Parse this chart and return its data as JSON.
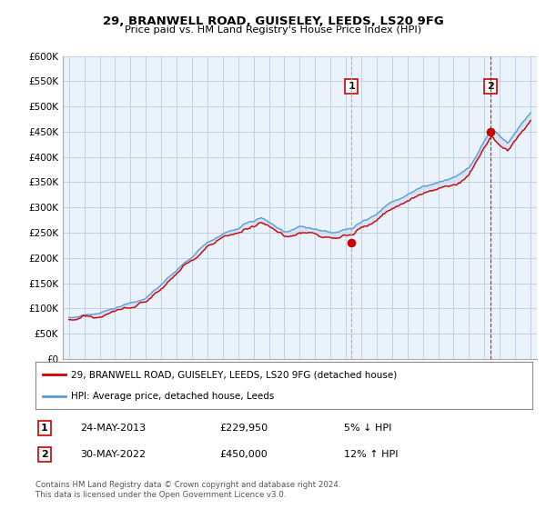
{
  "title": "29, BRANWELL ROAD, GUISELEY, LEEDS, LS20 9FG",
  "subtitle": "Price paid vs. HM Land Registry's House Price Index (HPI)",
  "ylabel_ticks": [
    "£0",
    "£50K",
    "£100K",
    "£150K",
    "£200K",
    "£250K",
    "£300K",
    "£350K",
    "£400K",
    "£450K",
    "£500K",
    "£550K",
    "£600K"
  ],
  "ytick_values": [
    0,
    50000,
    100000,
    150000,
    200000,
    250000,
    300000,
    350000,
    400000,
    450000,
    500000,
    550000,
    600000
  ],
  "x_start_year": 1995,
  "x_end_year": 2025,
  "sale1_date": "24-MAY-2013",
  "sale1_price": 229950,
  "sale1_year": 2013.37,
  "sale2_date": "30-MAY-2022",
  "sale2_price": 450000,
  "sale2_year": 2022.41,
  "property_label": "29, BRANWELL ROAD, GUISELEY, LEEDS, LS20 9FG (detached house)",
  "hpi_label": "HPI: Average price, detached house, Leeds",
  "footer": "Contains HM Land Registry data © Crown copyright and database right 2024.\nThis data is licensed under the Open Government Licence v3.0.",
  "hpi_color": "#5b9bd5",
  "fill_color": "#c9ddf0",
  "property_color": "#cc0000",
  "sale1_vline_color": "#aaaaaa",
  "sale2_vline_color": "#cc0000",
  "background_color": "#ffffff",
  "chart_bg_color": "#eaf3fb",
  "grid_color": "#c0d0e0"
}
